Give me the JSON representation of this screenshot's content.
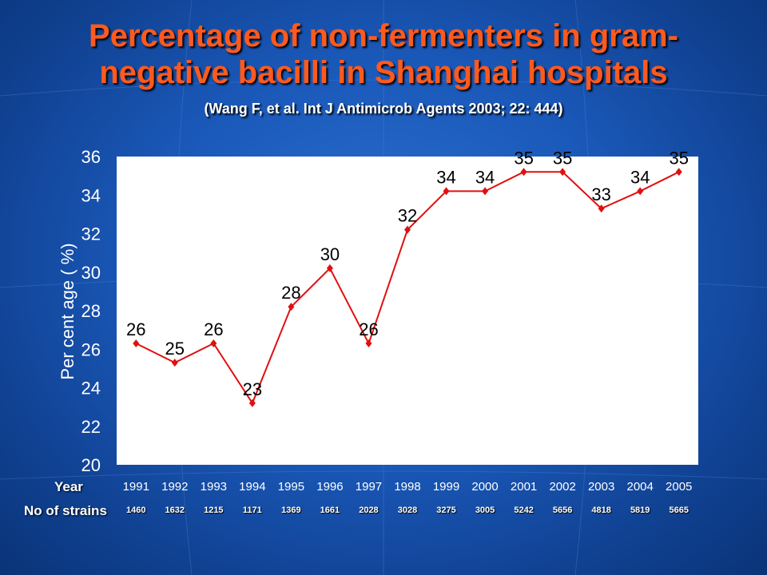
{
  "slide": {
    "title_line1": "Percentage of non-fermenters in gram-",
    "title_line2": "negative bacilli in Shanghai hospitals",
    "citation": "(Wang F, et al.  Int J Antimicrob Agents 2003; 22: 444)",
    "year_label": "Year",
    "strains_label": "No of strains"
  },
  "chart_data": {
    "type": "line",
    "x": [
      "1991",
      "1992",
      "1993",
      "1994",
      "1995",
      "1996",
      "1997",
      "1998",
      "1999",
      "2000",
      "2001",
      "2002",
      "2003",
      "2004",
      "2005"
    ],
    "series": [
      {
        "values": [
          26.3,
          25.3,
          26.3,
          23.2,
          28.2,
          30.2,
          26.3,
          32.2,
          34.2,
          34.2,
          35.2,
          35.2,
          33.3,
          34.2,
          35.2
        ],
        "data_labels": [
          "26",
          "25",
          "26",
          "23",
          "28",
          "30",
          "26",
          "32",
          "34",
          "34",
          "35",
          "35",
          "33",
          "34",
          "35"
        ]
      }
    ],
    "ylabel": "Per cent age ( %)",
    "xlabel": "Year",
    "ylim": [
      20,
      36
    ],
    "yticks": [
      "20",
      "22",
      "24",
      "26",
      "28",
      "30",
      "32",
      "34",
      "36"
    ],
    "strains": [
      "1460",
      "1632",
      "1215",
      "1171",
      "1369",
      "1661",
      "2028",
      "3028",
      "3275",
      "3005",
      "5242",
      "5656",
      "4818",
      "5819",
      "5665"
    ],
    "line_color": "#e01010",
    "plot_background": "#ffffff",
    "grid": false,
    "legend": "none"
  }
}
